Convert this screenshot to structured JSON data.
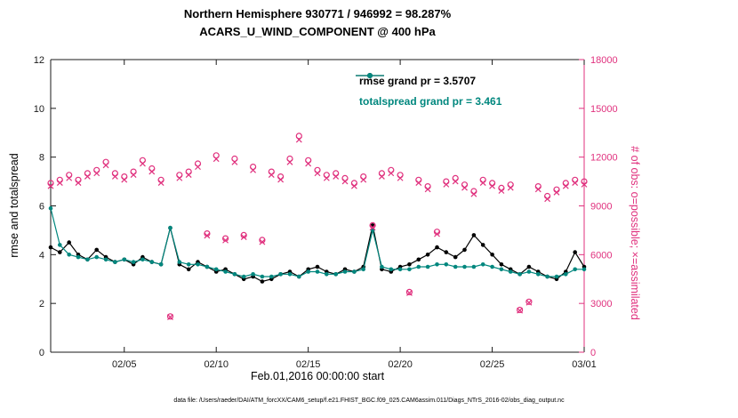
{
  "header": {
    "title_line1": "Northern Hemisphere 930771 / 946992 = 98.287%",
    "title_line2": "ACARS_U_WIND_COMPONENT @ 400 hPa"
  },
  "footer": {
    "caption": "data file: /Users/raeder/DAI/ATM_forcXX/CAM6_setup/f.e21.FHIST_BGC.f09_025.CAM6assim.011/Diags_NTrS_2016-02/obs_diag_output.nc"
  },
  "colors": {
    "rmse": "#000000",
    "totalspread": "#00877e",
    "obs": "#e0317e",
    "axis": "#1a1a1a"
  },
  "chart_data": {
    "type": "line",
    "title_line1": "Northern Hemisphere 930771 / 946992 = 98.287%",
    "title_line2": "ACARS_U_WIND_COMPONENT @ 400 hPa",
    "xlabel": "Feb.01,2016 00:00:00 start",
    "ylabel_left": "rmse and totalspread",
    "ylabel_right": "# of obs: o=possible; ×=assimilated",
    "grid": false,
    "legend_position": "upper-center-inside",
    "x_range_days": [
      1,
      30
    ],
    "ylim_left": [
      0,
      12
    ],
    "yticks_left": [
      0,
      2,
      4,
      6,
      8,
      10,
      12
    ],
    "ylim_right": [
      0,
      18000
    ],
    "yticks_right": [
      0,
      3000,
      6000,
      9000,
      12000,
      15000,
      18000
    ],
    "x_ticks": [
      {
        "day": 5,
        "label": "02/05"
      },
      {
        "day": 10,
        "label": "02/10"
      },
      {
        "day": 15,
        "label": "02/15"
      },
      {
        "day": 20,
        "label": "02/20"
      },
      {
        "day": 25,
        "label": "02/25"
      },
      {
        "day": 30,
        "label": "03/01"
      }
    ],
    "legend": [
      {
        "label": "rmse grand pr = 3.5707",
        "color": "#000000"
      },
      {
        "label": "totalspread grand pr = 3.461",
        "color": "#00877e"
      }
    ],
    "x": [
      1,
      1.5,
      2,
      2.5,
      3,
      3.5,
      4,
      4.5,
      5,
      5.5,
      6,
      6.5,
      7,
      7.5,
      8,
      8.5,
      9,
      9.5,
      10,
      10.5,
      11,
      11.5,
      12,
      12.5,
      13,
      13.5,
      14,
      14.5,
      15,
      15.5,
      16,
      16.5,
      17,
      17.5,
      18,
      18.5,
      19,
      19.5,
      20,
      20.5,
      21,
      21.5,
      22,
      22.5,
      23,
      23.5,
      24,
      24.5,
      25,
      25.5,
      26,
      26.5,
      27,
      27.5,
      28,
      28.5,
      29,
      29.5,
      30
    ],
    "series": [
      {
        "name": "rmse",
        "axis": "left",
        "marker": "dot",
        "color": "#000000",
        "values": [
          4.3,
          4.1,
          4.5,
          4.0,
          3.8,
          4.2,
          3.9,
          3.7,
          3.8,
          3.6,
          3.9,
          3.7,
          3.6,
          5.1,
          3.6,
          3.4,
          3.7,
          3.5,
          3.3,
          3.4,
          3.2,
          3.0,
          3.1,
          2.9,
          3.0,
          3.2,
          3.3,
          3.1,
          3.4,
          3.5,
          3.3,
          3.2,
          3.4,
          3.3,
          3.5,
          5.2,
          3.4,
          3.3,
          3.5,
          3.6,
          3.8,
          4.0,
          4.3,
          4.1,
          3.9,
          4.2,
          4.8,
          4.4,
          4.0,
          3.6,
          3.4,
          3.2,
          3.5,
          3.3,
          3.1,
          3.0,
          3.3,
          4.1,
          3.5
        ]
      },
      {
        "name": "totalspread",
        "axis": "left",
        "marker": "dot",
        "color": "#00877e",
        "values": [
          5.9,
          4.4,
          4.0,
          3.9,
          3.8,
          3.9,
          3.8,
          3.7,
          3.8,
          3.7,
          3.8,
          3.7,
          3.6,
          5.1,
          3.7,
          3.6,
          3.6,
          3.5,
          3.4,
          3.3,
          3.2,
          3.1,
          3.2,
          3.1,
          3.1,
          3.2,
          3.2,
          3.1,
          3.3,
          3.3,
          3.2,
          3.2,
          3.3,
          3.3,
          3.4,
          5.0,
          3.5,
          3.4,
          3.4,
          3.4,
          3.5,
          3.5,
          3.6,
          3.6,
          3.5,
          3.5,
          3.5,
          3.6,
          3.5,
          3.4,
          3.3,
          3.2,
          3.3,
          3.2,
          3.1,
          3.1,
          3.2,
          3.4,
          3.4
        ]
      },
      {
        "name": "obs_possible",
        "axis": "right",
        "marker": "circle",
        "color": "#e0317e",
        "values": [
          10400,
          10600,
          10900,
          10600,
          11000,
          11200,
          11700,
          11000,
          10800,
          11100,
          11800,
          11300,
          10600,
          2200,
          10900,
          11100,
          11600,
          7300,
          12100,
          7000,
          11900,
          7200,
          11400,
          6900,
          11100,
          10800,
          11900,
          13300,
          11800,
          11200,
          10900,
          11000,
          10700,
          10400,
          10800,
          7800,
          11000,
          11200,
          10900,
          3700,
          10600,
          10200,
          7400,
          10500,
          10700,
          10300,
          9900,
          10600,
          10400,
          10100,
          10300,
          2600,
          3100,
          10200,
          9600,
          10000,
          10400,
          10600,
          10500
        ]
      },
      {
        "name": "obs_assimilated",
        "axis": "right",
        "marker": "x",
        "color": "#e0317e",
        "values": [
          10220,
          10420,
          10710,
          10420,
          10810,
          11010,
          11500,
          10810,
          10610,
          10910,
          11600,
          11110,
          10420,
          2160,
          10710,
          10910,
          11400,
          7170,
          11890,
          6880,
          11690,
          7080,
          11200,
          6780,
          10910,
          10620,
          11690,
          13070,
          11600,
          11010,
          10710,
          10810,
          10510,
          10220,
          10610,
          7670,
          10810,
          11010,
          10710,
          3640,
          10420,
          10020,
          7270,
          10320,
          10510,
          10120,
          9730,
          10420,
          10220,
          9930,
          10120,
          2560,
          3050,
          10020,
          9430,
          9830,
          10220,
          10420,
          10320
        ]
      }
    ]
  }
}
